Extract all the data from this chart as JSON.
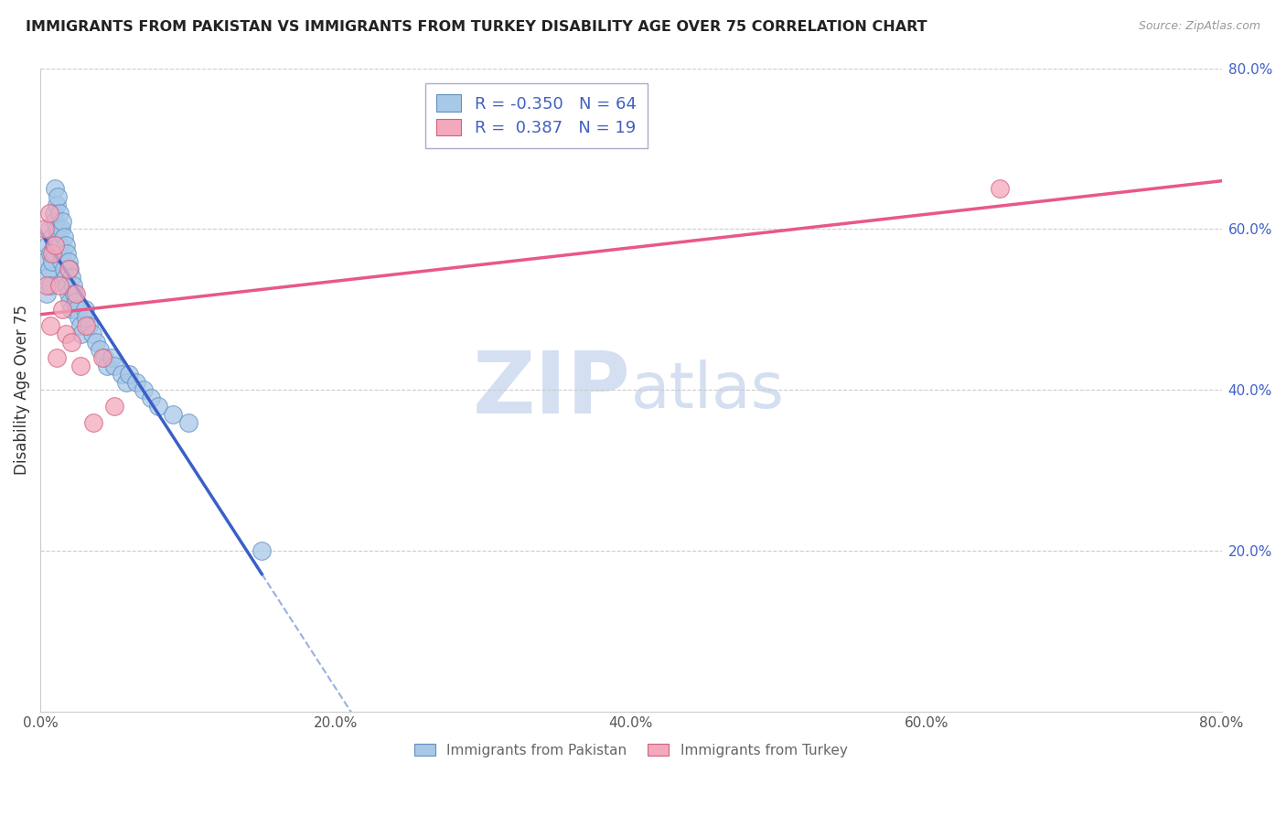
{
  "title": "IMMIGRANTS FROM PAKISTAN VS IMMIGRANTS FROM TURKEY DISABILITY AGE OVER 75 CORRELATION CHART",
  "source": "Source: ZipAtlas.com",
  "ylabel": "Disability Age Over 75",
  "xlim": [
    0.0,
    0.8
  ],
  "ylim": [
    0.0,
    0.8
  ],
  "pakistan_R": -0.35,
  "pakistan_N": 64,
  "turkey_R": 0.387,
  "turkey_N": 19,
  "pakistan_color": "#A8C8E8",
  "turkey_color": "#F4A8BC",
  "pakistan_line_color": "#3A5FC8",
  "turkey_line_color": "#E85888",
  "pakistan_edge_color": "#6090C0",
  "turkey_edge_color": "#D06080",
  "legend_R_color": "#4060C0",
  "background_color": "#FFFFFF",
  "watermark_color": "#D0DCF0",
  "pakistan_x": [
    0.003,
    0.004,
    0.005,
    0.005,
    0.006,
    0.006,
    0.007,
    0.007,
    0.008,
    0.008,
    0.009,
    0.009,
    0.01,
    0.01,
    0.01,
    0.011,
    0.011,
    0.012,
    0.012,
    0.013,
    0.013,
    0.014,
    0.014,
    0.015,
    0.015,
    0.016,
    0.016,
    0.017,
    0.017,
    0.018,
    0.018,
    0.019,
    0.019,
    0.02,
    0.02,
    0.021,
    0.021,
    0.022,
    0.023,
    0.024,
    0.025,
    0.026,
    0.027,
    0.028,
    0.03,
    0.031,
    0.033,
    0.035,
    0.038,
    0.04,
    0.043,
    0.045,
    0.048,
    0.05,
    0.055,
    0.058,
    0.06,
    0.065,
    0.07,
    0.075,
    0.08,
    0.09,
    0.1,
    0.15
  ],
  "pakistan_y": [
    0.56,
    0.52,
    0.58,
    0.54,
    0.6,
    0.55,
    0.57,
    0.53,
    0.59,
    0.56,
    0.62,
    0.58,
    0.65,
    0.61,
    0.57,
    0.63,
    0.59,
    0.64,
    0.6,
    0.62,
    0.58,
    0.6,
    0.56,
    0.61,
    0.57,
    0.59,
    0.55,
    0.58,
    0.54,
    0.57,
    0.53,
    0.56,
    0.52,
    0.55,
    0.51,
    0.54,
    0.5,
    0.53,
    0.52,
    0.51,
    0.5,
    0.49,
    0.48,
    0.47,
    0.5,
    0.49,
    0.48,
    0.47,
    0.46,
    0.45,
    0.44,
    0.43,
    0.44,
    0.43,
    0.42,
    0.41,
    0.42,
    0.41,
    0.4,
    0.39,
    0.38,
    0.37,
    0.36,
    0.2
  ],
  "turkey_x": [
    0.003,
    0.004,
    0.006,
    0.007,
    0.008,
    0.01,
    0.011,
    0.013,
    0.015,
    0.017,
    0.019,
    0.021,
    0.024,
    0.027,
    0.031,
    0.036,
    0.042,
    0.05,
    0.65
  ],
  "turkey_y": [
    0.6,
    0.53,
    0.62,
    0.48,
    0.57,
    0.58,
    0.44,
    0.53,
    0.5,
    0.47,
    0.55,
    0.46,
    0.52,
    0.43,
    0.48,
    0.36,
    0.44,
    0.38,
    0.65
  ]
}
